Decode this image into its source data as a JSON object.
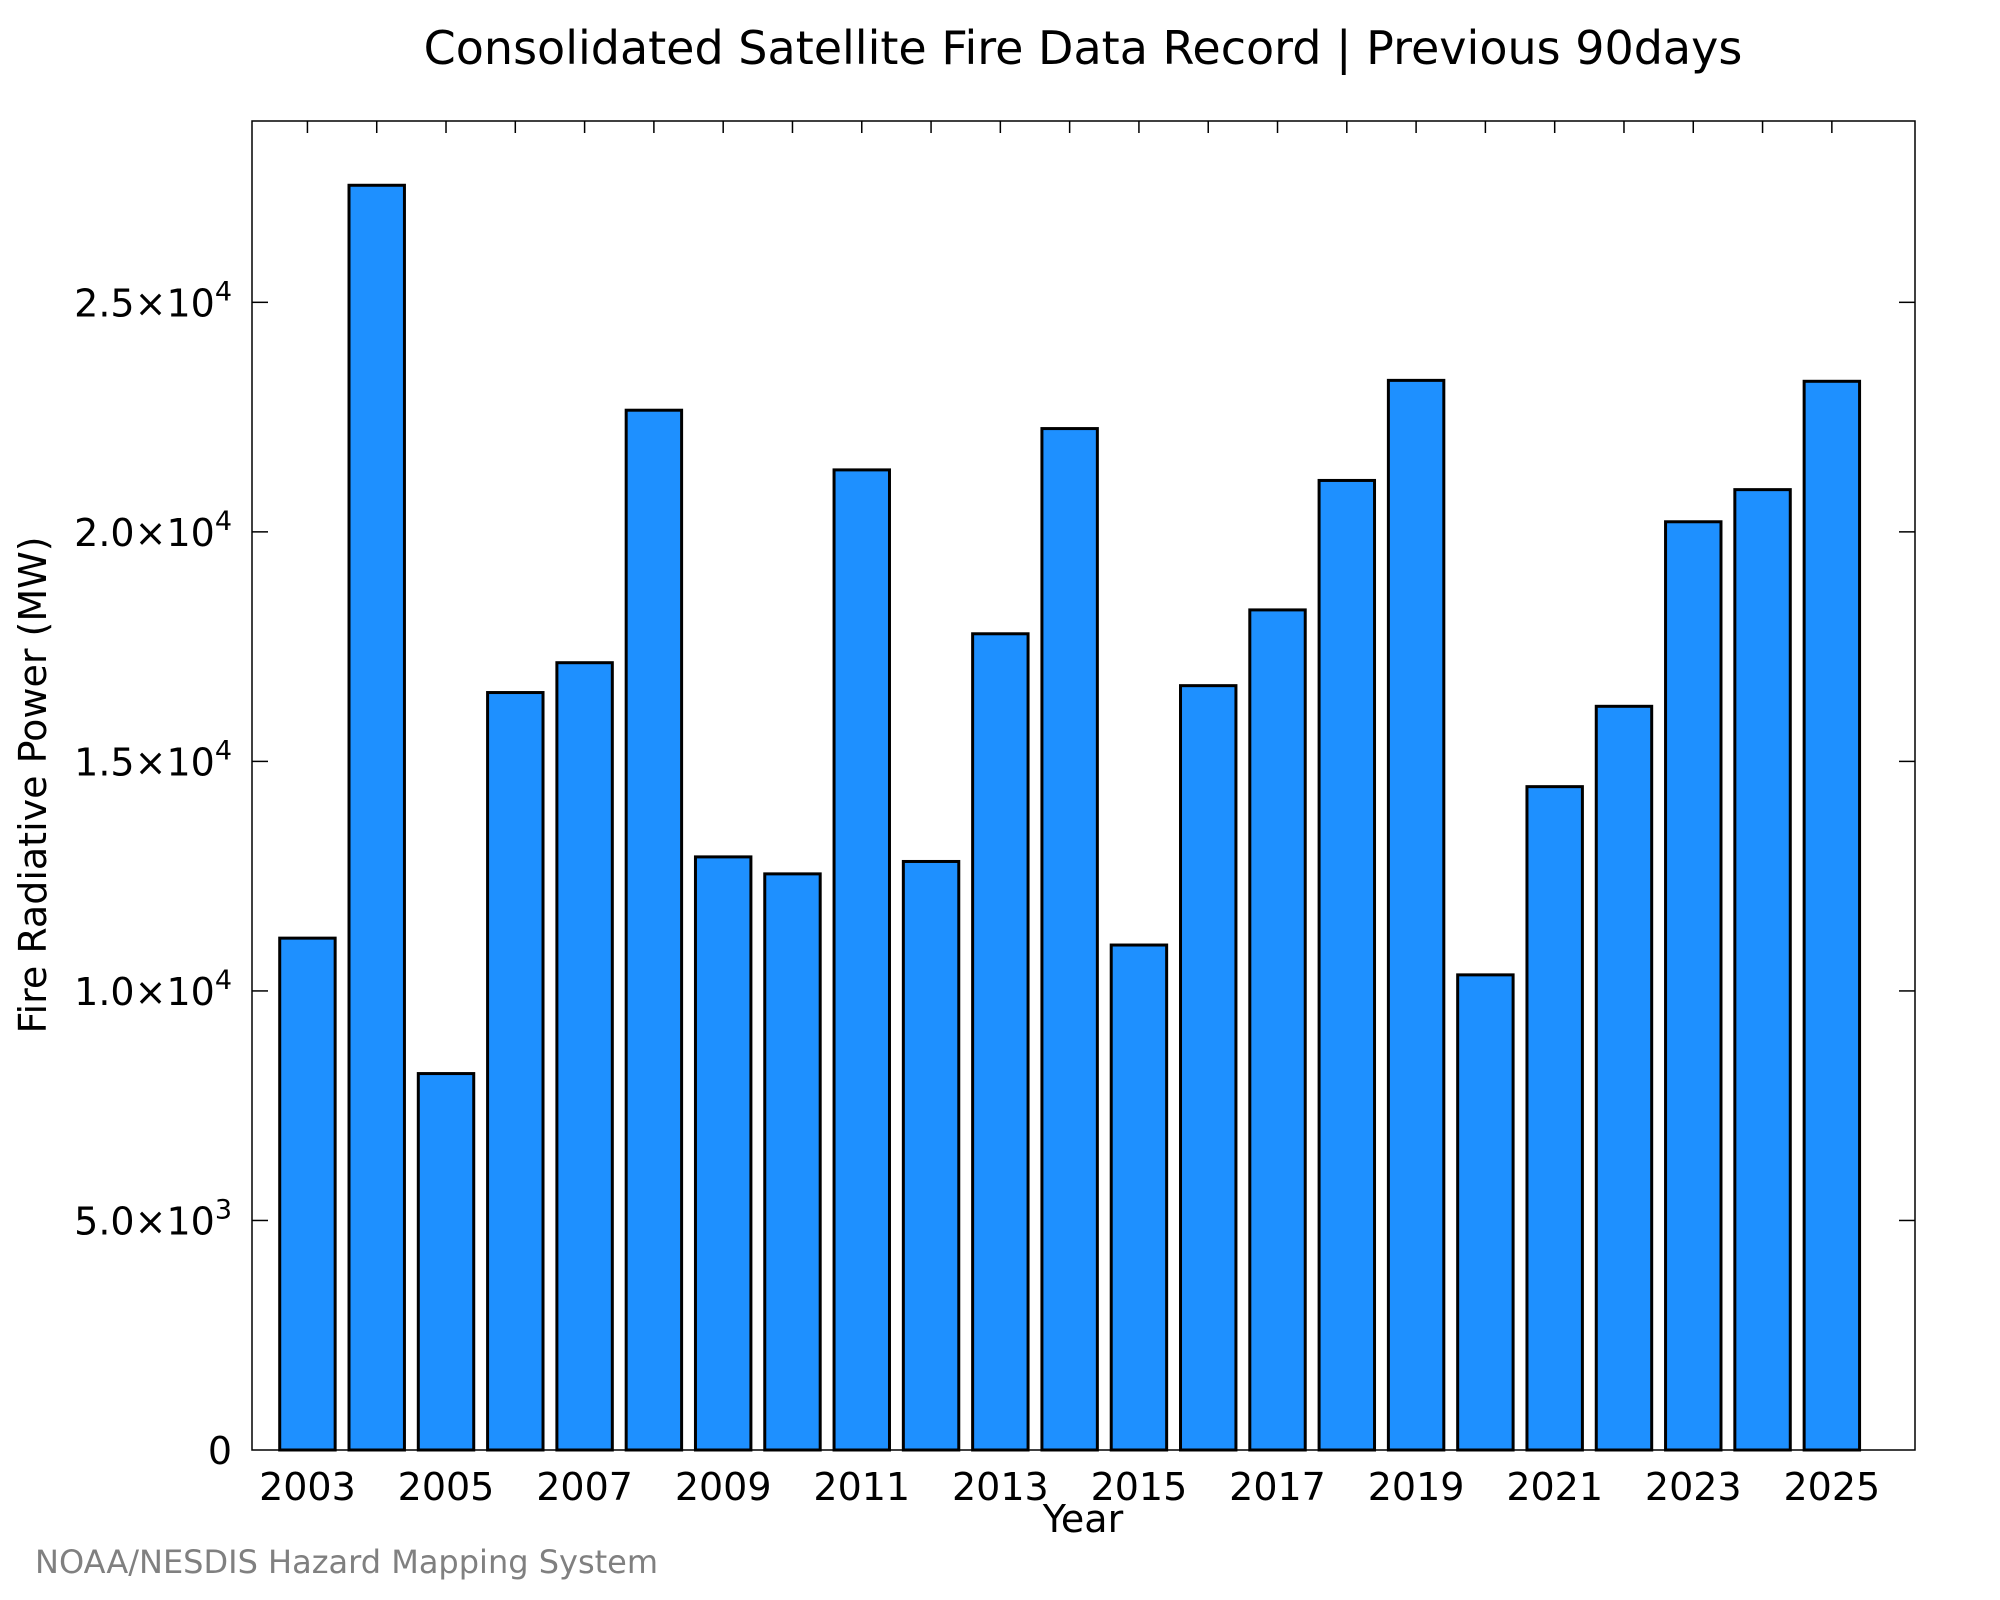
{
  "chart_data": {
    "type": "bar",
    "title": "Consolidated Satellite Fire Data Record | Previous 90days",
    "xlabel": "Year",
    "ylabel": "Fire Radiative Power (MW)",
    "categories": [
      2003,
      2004,
      2005,
      2006,
      2007,
      2008,
      2009,
      2010,
      2011,
      2012,
      2013,
      2014,
      2015,
      2016,
      2017,
      2018,
      2019,
      2020,
      2021,
      2022,
      2023,
      2024,
      2025
    ],
    "values": [
      11150,
      27550,
      8200,
      16500,
      17150,
      22650,
      12920,
      12550,
      21350,
      12820,
      17780,
      22250,
      11000,
      16650,
      18300,
      21120,
      23300,
      10350,
      14450,
      16200,
      20220,
      20920,
      23280
    ],
    "xlim": [
      2002.2,
      2026.2
    ],
    "ylim": [
      0,
      28950
    ],
    "xticks": [
      {
        "value": 2003,
        "label": "2003"
      },
      {
        "value": 2005,
        "label": "2005"
      },
      {
        "value": 2007,
        "label": "2007"
      },
      {
        "value": 2009,
        "label": "2009"
      },
      {
        "value": 2011,
        "label": "2011"
      },
      {
        "value": 2013,
        "label": "2013"
      },
      {
        "value": 2015,
        "label": "2015"
      },
      {
        "value": 2017,
        "label": "2017"
      },
      {
        "value": 2019,
        "label": "2019"
      },
      {
        "value": 2021,
        "label": "2021"
      },
      {
        "value": 2023,
        "label": "2023"
      },
      {
        "value": 2025,
        "label": "2025"
      }
    ],
    "yticks": [
      {
        "value": 0,
        "mantissa": "0",
        "exp": ""
      },
      {
        "value": 5000,
        "mantissa": "5.0×10",
        "exp": "3"
      },
      {
        "value": 10000,
        "mantissa": "1.0×10",
        "exp": "4"
      },
      {
        "value": 15000,
        "mantissa": "1.5×10",
        "exp": "4"
      },
      {
        "value": 20000,
        "mantissa": "2.0×10",
        "exp": "4"
      },
      {
        "value": 25000,
        "mantissa": "2.5×10",
        "exp": "4"
      }
    ],
    "bar_color": "#1e90ff",
    "bar_edge_color": "#000000",
    "grid": false,
    "credit": "NOAA/NESDIS Hazard Mapping System"
  }
}
